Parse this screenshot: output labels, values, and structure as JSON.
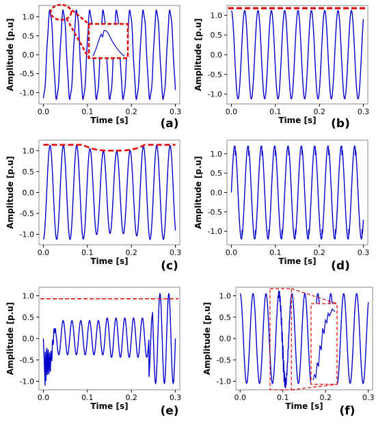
{
  "chart_data": [
    {
      "panel": "(a)",
      "type": "line",
      "xlabel": "Time [s]",
      "ylabel": "Amplitude [p.u]",
      "xlim": [
        -0.01,
        0.31
      ],
      "ylim": [
        -1.3,
        1.3
      ],
      "xticks": [
        "0.0",
        "0.1",
        "0.2",
        "0.3"
      ],
      "yticks": [
        "-1.0",
        "-0.5",
        "0.0",
        "0.5",
        "1.0"
      ],
      "series": [
        {
          "color": "#0000cc",
          "waveform": "sine",
          "frequency_hz": 33,
          "phase_deg": 180,
          "start": 0.0,
          "end": 0.3,
          "amplitude": 1.15,
          "note_shape": "distorted peak"
        }
      ],
      "annotations": [
        "red dashed ellipse around first peak",
        "red dashed zoom inset of distorted peak"
      ]
    },
    {
      "panel": "(b)",
      "type": "line",
      "xlabel": "Time [s]",
      "ylabel": "Amplitude [p.u]",
      "xlim": [
        -0.01,
        0.31
      ],
      "ylim": [
        -1.25,
        1.25
      ],
      "xticks": [
        "0.0",
        "0.1",
        "0.2",
        "0.3"
      ],
      "yticks": [
        "-1.0",
        "-0.5",
        "0.0",
        "0.5",
        "1.0"
      ],
      "series": [
        {
          "color": "#0000cc",
          "waveform": "sine",
          "frequency_hz": 33,
          "phase_deg": 0,
          "start": 0.0,
          "end": 0.3,
          "amplitude": 1.12
        }
      ],
      "envelope_line": {
        "color": "#e00000",
        "style": "dashed",
        "y": 1.18
      }
    },
    {
      "panel": "(c)",
      "type": "line",
      "xlabel": "Time [s]",
      "ylabel": "Amplitude [p.u]",
      "xlim": [
        -0.01,
        0.31
      ],
      "ylim": [
        -1.25,
        1.25
      ],
      "xticks": [
        "0.0",
        "0.1",
        "0.2",
        "0.3"
      ],
      "yticks": [
        "-1.0",
        "-0.5",
        "0.0",
        "0.5",
        "1.0"
      ],
      "series": [
        {
          "color": "#0000cc",
          "waveform": "sag",
          "frequency_hz": 33,
          "phase_deg": 180,
          "start": 0.0,
          "end": 0.3,
          "amplitude": 1.12,
          "sag_start": 0.09,
          "sag_end": 0.23,
          "sag_amplitude": 0.98
        }
      ],
      "envelope_line": {
        "color": "#e00000",
        "style": "dashed",
        "shape": "sag"
      }
    },
    {
      "panel": "(d)",
      "type": "line",
      "xlabel": "Time [s]",
      "ylabel": "Amplitude [p.u]",
      "xlim": [
        -0.01,
        0.31
      ],
      "ylim": [
        -1.35,
        1.35
      ],
      "xticks": [
        "0.0",
        "0.1",
        "0.2",
        "0.3"
      ],
      "yticks": [
        "-1.0",
        "-0.5",
        "0.0",
        "0.5",
        "1.0"
      ],
      "series": [
        {
          "color": "#0000cc",
          "waveform": "notch",
          "frequency_hz": 33,
          "phase_deg": 0,
          "start": 0.0,
          "end": 0.3,
          "amplitude": 1.2
        }
      ]
    },
    {
      "panel": "(e)",
      "type": "line",
      "xlabel": "Time [s]",
      "ylabel": "Amplitude [p.u]",
      "xlim": [
        -0.01,
        0.31
      ],
      "ylim": [
        -1.2,
        1.2
      ],
      "xticks": [
        "0.0",
        "0.1",
        "0.2",
        "0.3"
      ],
      "yticks": [
        "-1.0",
        "-0.5",
        "0.0",
        "0.5",
        "1.0"
      ],
      "series": [
        {
          "color": "#0000cc",
          "waveform": "interruption",
          "frequency_hz": 50,
          "phase_deg": 0,
          "start": 0.0,
          "end": 0.3,
          "low_start": 0.004,
          "low_end": 0.24,
          "low_amplitude": 0.4,
          "normal_amplitude": 1.05,
          "transient_min": -1.1
        }
      ],
      "threshold_line": {
        "color": "#e00000",
        "style": "dashed",
        "y": 0.93
      }
    },
    {
      "panel": "(f)",
      "type": "line",
      "xlabel": "Time [s]",
      "ylabel": "Amplitude [p.u]",
      "xlim": [
        -0.01,
        0.31
      ],
      "ylim": [
        -1.2,
        1.2
      ],
      "xticks": [
        "0.0",
        "0.1",
        "0.2",
        "0.3"
      ],
      "yticks": [
        "-1.0",
        "-0.5",
        "0.0",
        "0.5",
        "1.0"
      ],
      "series": [
        {
          "color": "#0000cc",
          "waveform": "transient",
          "frequency_hz": 33,
          "phase_deg": 0,
          "start": 0.0,
          "end": 0.3,
          "amplitude": 1.05,
          "transient_at": 0.1
        }
      ],
      "annotations": [
        "red dashed box around transient 0.07-0.12 s",
        "red dashed zoom inset of transient"
      ]
    }
  ]
}
